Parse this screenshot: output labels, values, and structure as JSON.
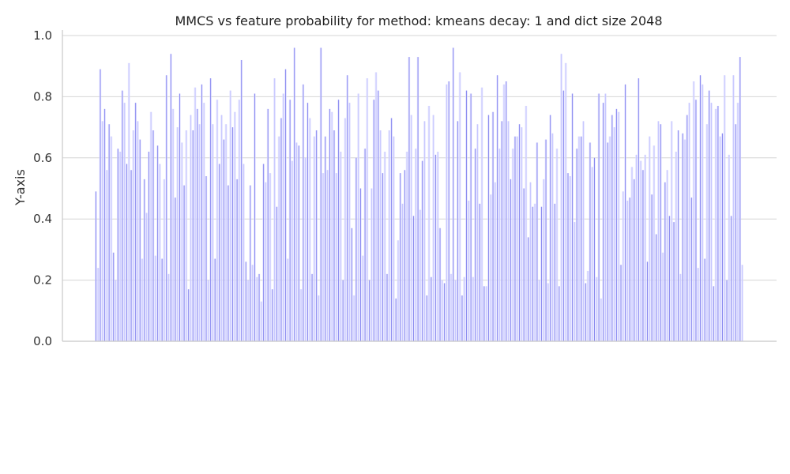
{
  "chart_data": {
    "type": "bar",
    "title": "MMCS vs feature probability for method: kmeans decay: 1 and dict size 2048",
    "xlabel": "",
    "ylabel": "Y-axis",
    "ylim": [
      0,
      1
    ],
    "yticks": [
      0.0,
      0.2,
      0.4,
      0.6,
      0.8,
      1.0
    ],
    "ytick_labels": [
      "0.0",
      "0.2",
      "0.4",
      "0.6",
      "0.8",
      "1.0"
    ],
    "grid": "horizontal",
    "x_tick_labels_visible": false,
    "bar_colors": [
      "#c7c7ff",
      "#8a8af0",
      "#dcdcff"
    ],
    "values": [
      0.49,
      0.24,
      0.89,
      0.72,
      0.76,
      0.56,
      0.71,
      0.67,
      0.29,
      0.2,
      0.63,
      0.62,
      0.82,
      0.78,
      0.58,
      0.91,
      0.56,
      0.69,
      0.78,
      0.72,
      0.66,
      0.27,
      0.53,
      0.42,
      0.62,
      0.75,
      0.69,
      0.28,
      0.64,
      0.58,
      0.27,
      0.53,
      0.87,
      0.22,
      0.94,
      0.76,
      0.47,
      0.7,
      0.81,
      0.65,
      0.51,
      0.69,
      0.17,
      0.74,
      0.69,
      0.83,
      0.76,
      0.71,
      0.84,
      0.78,
      0.54,
      0.2,
      0.86,
      0.71,
      0.27,
      0.79,
      0.58,
      0.74,
      0.66,
      0.71,
      0.51,
      0.82,
      0.7,
      0.75,
      0.53,
      0.79,
      0.92,
      0.58,
      0.26,
      0.2,
      0.51,
      0.25,
      0.81,
      0.21,
      0.22,
      0.13,
      0.58,
      0.52,
      0.76,
      0.55,
      0.17,
      0.86,
      0.44,
      0.67,
      0.73,
      0.81,
      0.89,
      0.27,
      0.79,
      0.59,
      0.96,
      0.65,
      0.64,
      0.17,
      0.84,
      0.6,
      0.78,
      0.73,
      0.22,
      0.67,
      0.69,
      0.15,
      0.96,
      0.55,
      0.67,
      0.56,
      0.76,
      0.75,
      0.69,
      0.55,
      0.79,
      0.62,
      0.2,
      0.73,
      0.87,
      0.78,
      0.37,
      0.15,
      0.6,
      0.81,
      0.5,
      0.28,
      0.63,
      0.86,
      0.2,
      0.5,
      0.79,
      0.88,
      0.82,
      0.69,
      0.55,
      0.62,
      0.22,
      0.69,
      0.73,
      0.67,
      0.14,
      0.33,
      0.55,
      0.45,
      0.56,
      0.62,
      0.93,
      0.74,
      0.41,
      0.63,
      0.93,
      0.43,
      0.59,
      0.72,
      0.15,
      0.77,
      0.21,
      0.74,
      0.61,
      0.62,
      0.37,
      0.2,
      0.19,
      0.84,
      0.85,
      0.22,
      0.96,
      0.2,
      0.72,
      0.88,
      0.15,
      0.21,
      0.82,
      0.46,
      0.81,
      0.21,
      0.63,
      0.71,
      0.45,
      0.83,
      0.18,
      0.18,
      0.74,
      0.48,
      0.75,
      0.52,
      0.87,
      0.63,
      0.72,
      0.84,
      0.85,
      0.72,
      0.53,
      0.63,
      0.67,
      0.67,
      0.71,
      0.7,
      0.5,
      0.77,
      0.34,
      0.52,
      0.44,
      0.45,
      0.65,
      0.2,
      0.44,
      0.53,
      0.66,
      0.19,
      0.74,
      0.68,
      0.45,
      0.63,
      0.18,
      0.94,
      0.82,
      0.91,
      0.55,
      0.54,
      0.81,
      0.39,
      0.63,
      0.67,
      0.67,
      0.72,
      0.19,
      0.23,
      0.65,
      0.57,
      0.6,
      0.21,
      0.81,
      0.14,
      0.78,
      0.81,
      0.65,
      0.67,
      0.74,
      0.7,
      0.76,
      0.75,
      0.25,
      0.49,
      0.84,
      0.46,
      0.47,
      0.57,
      0.53,
      0.61,
      0.86,
      0.59,
      0.56,
      0.61,
      0.26,
      0.67,
      0.48,
      0.64,
      0.35,
      0.72,
      0.71,
      0.29,
      0.52,
      0.56,
      0.41,
      0.72,
      0.39,
      0.62,
      0.69,
      0.22,
      0.68,
      0.66,
      0.74,
      0.78,
      0.47,
      0.85,
      0.79,
      0.24,
      0.87,
      0.84,
      0.27,
      0.71,
      0.82,
      0.78,
      0.18,
      0.76,
      0.77,
      0.67,
      0.68,
      0.87,
      0.2,
      0.61,
      0.41,
      0.87,
      0.71,
      0.78,
      0.93,
      0.25
    ]
  }
}
